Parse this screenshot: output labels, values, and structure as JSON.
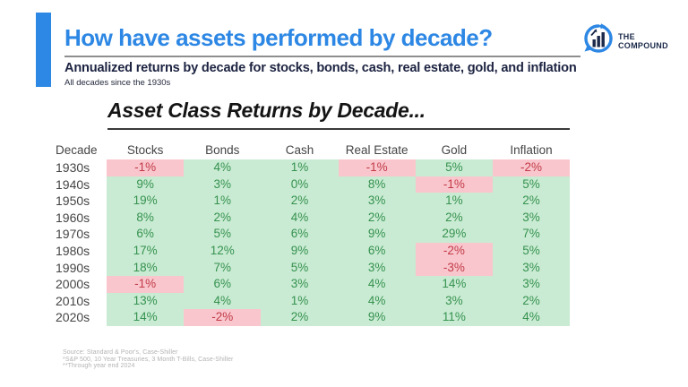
{
  "header": {
    "title": "How have assets performed by decade?",
    "subtitle": "Annualized returns by decade for stocks, bonds, cash, real estate, gold, and inflation",
    "subnote": "All decades since the 1930s",
    "accent_color": "#2d87e4",
    "title_color": "#2d87e4"
  },
  "logo": {
    "line1": "THE",
    "line2": "COMPOUND",
    "icon": "compound-chart-bubble-icon",
    "icon_color": "#2d87e4",
    "text_color": "#1b2a4a"
  },
  "chart_data": {
    "type": "table",
    "title": "Asset Class Returns by Decade...",
    "columns": [
      "Decade",
      "Stocks",
      "Bonds",
      "Cash",
      "Real Estate",
      "Gold",
      "Inflation"
    ],
    "rows": [
      {
        "decade": "1930s",
        "values": [
          -1,
          4,
          1,
          -1,
          5,
          -2
        ]
      },
      {
        "decade": "1940s",
        "values": [
          9,
          3,
          0,
          8,
          -1,
          5
        ]
      },
      {
        "decade": "1950s",
        "values": [
          19,
          1,
          2,
          3,
          1,
          2
        ]
      },
      {
        "decade": "1960s",
        "values": [
          8,
          2,
          4,
          2,
          2,
          3
        ]
      },
      {
        "decade": "1970s",
        "values": [
          6,
          5,
          6,
          9,
          29,
          7
        ]
      },
      {
        "decade": "1980s",
        "values": [
          17,
          12,
          9,
          6,
          -2,
          5
        ]
      },
      {
        "decade": "1990s",
        "values": [
          18,
          7,
          5,
          3,
          -3,
          3
        ]
      },
      {
        "decade": "2000s",
        "values": [
          -1,
          6,
          3,
          4,
          14,
          3
        ]
      },
      {
        "decade": "2010s",
        "values": [
          13,
          4,
          1,
          4,
          3,
          2
        ]
      },
      {
        "decade": "2020s",
        "values": [
          14,
          -2,
          2,
          9,
          11,
          4
        ]
      }
    ],
    "value_format": "percent",
    "positive_bg": "#c9ebd3",
    "negative_bg": "#f9c6cd",
    "positive_text": "#36924f",
    "negative_text": "#c23b47",
    "legend_position": "none",
    "grid": false
  },
  "footer": {
    "lines": [
      "Source: Standard & Poor's, Case-Shiller",
      "*S&P 500, 10 Year Treasuries, 3 Month T-Bills, Case-Shiller",
      "**Through year end 2024"
    ]
  }
}
